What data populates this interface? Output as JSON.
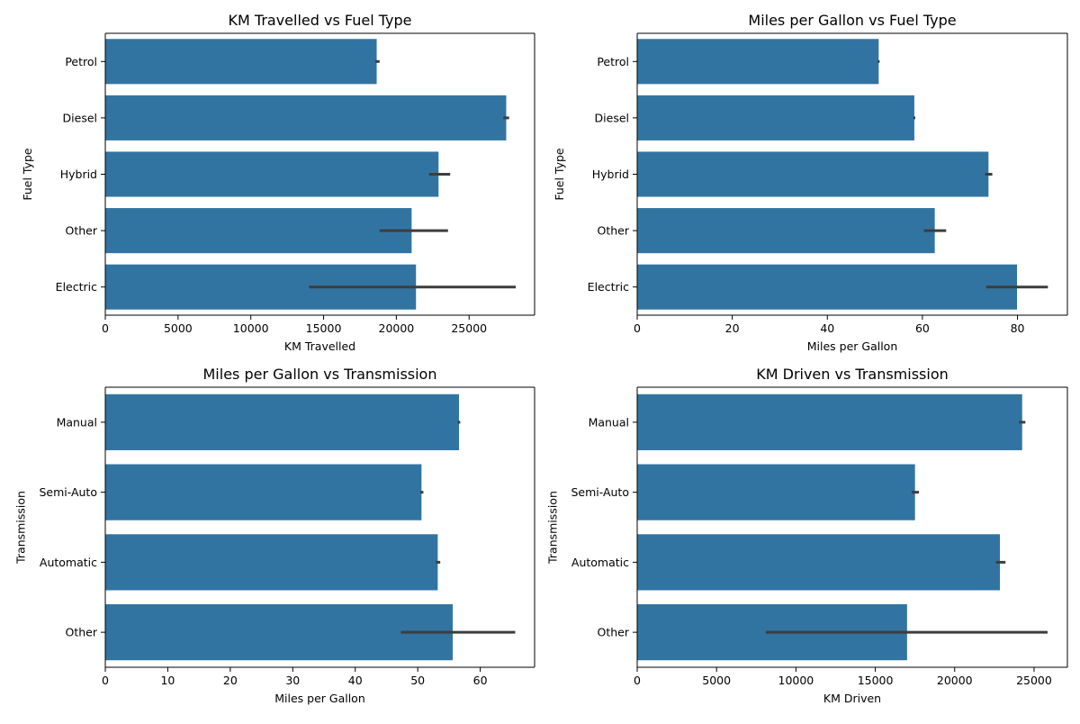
{
  "colors": {
    "bar": "#3274a1",
    "errorbar": "#3d3d3d",
    "axis": "#000000"
  },
  "chart_data": [
    {
      "type": "bar",
      "orientation": "horizontal",
      "title": "KM Travelled vs Fuel Type",
      "xlabel": "KM Travelled",
      "ylabel": "Fuel Type",
      "categories": [
        "Petrol",
        "Diesel",
        "Hybrid",
        "Other",
        "Electric"
      ],
      "values": [
        18650,
        27550,
        22900,
        21050,
        21350
      ],
      "error_low": [
        18550,
        27350,
        22250,
        18850,
        14000
      ],
      "error_high": [
        18850,
        27750,
        23700,
        23550,
        28200
      ],
      "xlim": [
        0,
        29500
      ],
      "xticks": [
        0,
        5000,
        10000,
        15000,
        20000,
        25000
      ],
      "grid": false
    },
    {
      "type": "bar",
      "orientation": "horizontal",
      "title": "Miles per Gallon vs Fuel Type",
      "xlabel": "Miles per Gallon",
      "ylabel": "Fuel Type",
      "categories": [
        "Petrol",
        "Diesel",
        "Hybrid",
        "Other",
        "Electric"
      ],
      "values": [
        50.8,
        58.3,
        73.9,
        62.6,
        79.9
      ],
      "error_low": [
        50.6,
        58.1,
        73.2,
        60.3,
        73.4
      ],
      "error_high": [
        51.0,
        58.5,
        74.7,
        65.0,
        86.4
      ],
      "xlim": [
        0,
        90.5
      ],
      "xticks": [
        0,
        20,
        40,
        60,
        80
      ],
      "grid": false
    },
    {
      "type": "bar",
      "orientation": "horizontal",
      "title": "Miles per Gallon vs Transmission",
      "xlabel": "Miles per Gallon",
      "ylabel": "Transmission",
      "categories": [
        "Manual",
        "Semi-Auto",
        "Automatic",
        "Other"
      ],
      "values": [
        56.6,
        50.6,
        53.2,
        55.6
      ],
      "error_low": [
        56.4,
        50.4,
        52.9,
        47.3
      ],
      "error_high": [
        56.8,
        50.9,
        53.6,
        65.6
      ],
      "xlim": [
        0,
        68.7
      ],
      "xticks": [
        0,
        10,
        20,
        30,
        40,
        50,
        60
      ],
      "grid": false
    },
    {
      "type": "bar",
      "orientation": "horizontal",
      "title": "KM Driven vs Transmission",
      "xlabel": "KM Driven",
      "ylabel": "Transmission",
      "categories": [
        "Manual",
        "Semi-Auto",
        "Automatic",
        "Other"
      ],
      "values": [
        24250,
        17500,
        22850,
        17000
      ],
      "error_low": [
        24050,
        17300,
        22600,
        8100
      ],
      "error_high": [
        24450,
        17750,
        23200,
        25850
      ],
      "xlim": [
        0,
        27100
      ],
      "xticks": [
        0,
        5000,
        10000,
        15000,
        20000,
        25000
      ],
      "grid": false
    }
  ]
}
